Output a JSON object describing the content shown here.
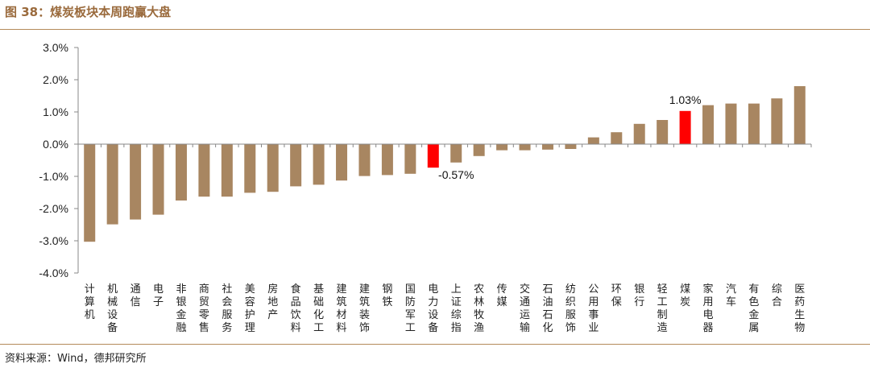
{
  "header": {
    "title": "图 38：煤炭板块本周跑赢大盘"
  },
  "footer": {
    "source": "资料来源：Wind，德邦研究所"
  },
  "chart_data": {
    "type": "bar",
    "title": "",
    "xlabel": "",
    "ylabel": "",
    "ylim": [
      -4.0,
      3.0
    ],
    "yticks": [
      "3.0%",
      "2.0%",
      "1.0%",
      "0.0%",
      "-1.0%",
      "-2.0%",
      "-3.0%",
      "-4.0%"
    ],
    "grid": false,
    "legend": "none",
    "colors": {
      "default": "#a88661",
      "highlight": "#ff0000"
    },
    "highlight_index": [
      15,
      26
    ],
    "categories": [
      "计算机",
      "机械设备",
      "通信",
      "电子",
      "非银金融",
      "商贸零售",
      "社会服务",
      "美容护理",
      "房地产",
      "食品饮料",
      "基础化工",
      "建筑材料",
      "建筑装饰",
      "钢铁",
      "国防军工",
      "电力设备",
      "上证综指",
      "农林牧渔",
      "传媒",
      "交通运输",
      "石油石化",
      "纺织服饰",
      "公用事业",
      "环保",
      "银行",
      "轻工制造",
      "煤炭",
      "家用电器",
      "汽车",
      "有色金属",
      "综合",
      "医药生物"
    ],
    "values": [
      -3.03,
      -2.49,
      -2.34,
      -2.19,
      -1.75,
      -1.63,
      -1.63,
      -1.51,
      -1.48,
      -1.31,
      -1.26,
      -1.13,
      -0.99,
      -0.96,
      -0.92,
      -0.73,
      -0.57,
      -0.37,
      -0.19,
      -0.19,
      -0.17,
      -0.15,
      0.21,
      0.37,
      0.63,
      0.75,
      1.03,
      1.21,
      1.26,
      1.26,
      1.42,
      1.8
    ],
    "data_labels": [
      {
        "index": 16,
        "text": "-0.57%"
      },
      {
        "index": 26,
        "text": "1.03%"
      }
    ]
  }
}
